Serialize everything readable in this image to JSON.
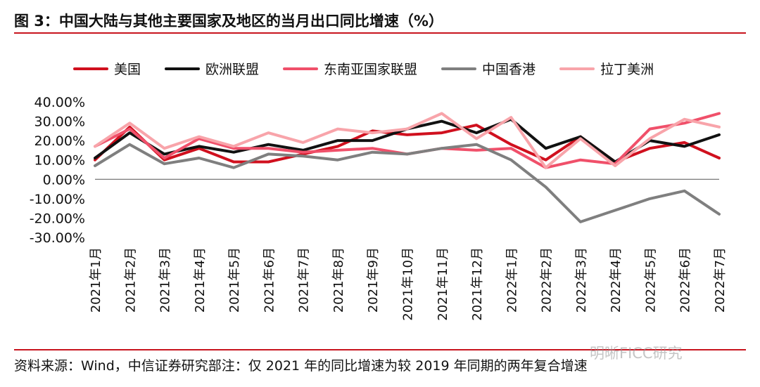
{
  "header": {
    "title": "图 3：中国大陆与其他主要国家及地区的当月出口同比增速（%）"
  },
  "footer": {
    "source": "资料来源：Wind，中信证券研究部注：仅 2021 年的同比增速为较 2019 年同期的两年复合增速",
    "watermark": "明晰FICC研究"
  },
  "chart_data": {
    "type": "line",
    "title": "",
    "xlabel": "",
    "ylabel": "",
    "ylim": [
      -30,
      40
    ],
    "y_ticks": [
      "40.00%",
      "30.00%",
      "20.00%",
      "10.00%",
      "0.00%",
      "-10.00%",
      "-20.00%",
      "-30.00%"
    ],
    "y_tick_values": [
      40,
      30,
      20,
      10,
      0,
      -10,
      -20,
      -30
    ],
    "legend_position": "top",
    "categories": [
      "2021年1月",
      "2021年2月",
      "2021年3月",
      "2021年4月",
      "2021年5月",
      "2021年6月",
      "2021年7月",
      "2021年8月",
      "2021年9月",
      "2021年10月",
      "2021年11月",
      "2021年12月",
      "2022年1月",
      "2022年2月",
      "2022年3月",
      "2022年4月",
      "2022年5月",
      "2022年6月",
      "2022年7月"
    ],
    "series": [
      {
        "name": "美国",
        "color": "#d0101e",
        "values": [
          10,
          27,
          10,
          16,
          9,
          9,
          13,
          17,
          25,
          23,
          24,
          28,
          18,
          10,
          22,
          9,
          16,
          19,
          11
        ]
      },
      {
        "name": "欧洲联盟",
        "color": "#111111",
        "values": [
          11,
          24,
          13,
          17,
          14,
          18,
          15,
          20,
          20,
          26,
          30,
          24,
          31,
          16,
          22,
          9,
          20,
          17,
          23
        ]
      },
      {
        "name": "东南亚国家联盟",
        "color": "#f0506a",
        "values": [
          17,
          26,
          11,
          21,
          16,
          16,
          14,
          15,
          16,
          13,
          16,
          15,
          16,
          6,
          10,
          8,
          26,
          29,
          34
        ]
      },
      {
        "name": "中国香港",
        "color": "#7f7f7f",
        "values": [
          7,
          18,
          8,
          11,
          6,
          13,
          12,
          10,
          14,
          13,
          16,
          18,
          10,
          -4,
          -22,
          -16,
          -10,
          -6,
          -18
        ]
      },
      {
        "name": "拉丁美洲",
        "color": "#f8a4aa",
        "values": [
          17,
          29,
          16,
          22,
          17,
          24,
          19,
          26,
          24,
          26,
          34,
          21,
          32,
          6,
          21,
          7,
          21,
          31,
          27
        ]
      }
    ]
  }
}
